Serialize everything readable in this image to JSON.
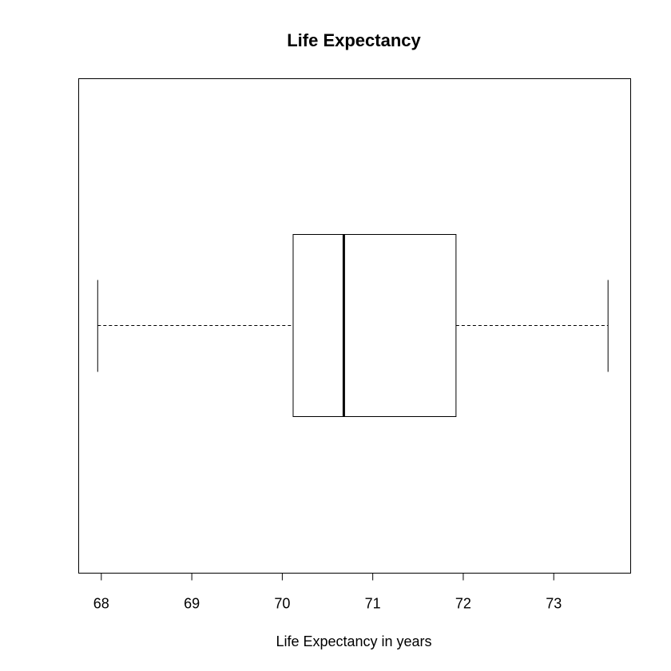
{
  "chart_data": {
    "type": "boxplot",
    "orientation": "horizontal",
    "title": "Life Expectancy",
    "xlabel": "Life Expectancy in years",
    "ylabel": "",
    "xlim": [
      67.75,
      73.85
    ],
    "x_ticks": [
      "68",
      "69",
      "70",
      "71",
      "72",
      "73"
    ],
    "x_tick_values": [
      68,
      69,
      70,
      71,
      72,
      73
    ],
    "stats": {
      "min": 67.96,
      "q1": 70.12,
      "median": 70.68,
      "q3": 71.92,
      "max": 73.6
    },
    "grid": false,
    "legend": "none"
  }
}
